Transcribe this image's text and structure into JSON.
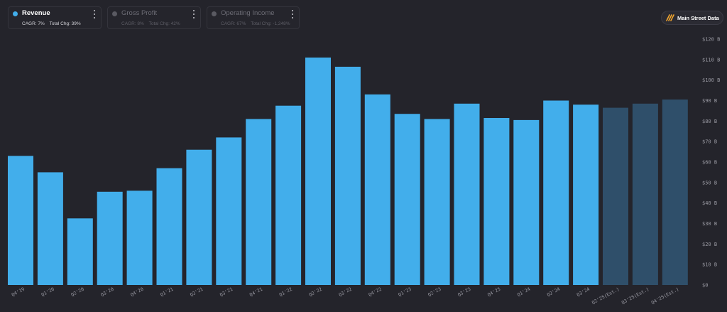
{
  "legend": [
    {
      "title": "Revenue",
      "cagr": "CAGR: 7%",
      "total": "Total Chg: 39%",
      "color": "#42aeeb",
      "active": true
    },
    {
      "title": "Gross Profit",
      "cagr": "CAGR: 8%",
      "total": "Total Chg: 42%",
      "color": "#5a5a62",
      "active": false
    },
    {
      "title": "Operating Income",
      "cagr": "CAGR: 67%",
      "total": "Total Chg: -1,248%",
      "color": "#5a5a62",
      "active": false
    }
  ],
  "brand": {
    "name": "Main Street Data",
    "icon": "double-slash-logo-icon",
    "accent": "#f2a52d"
  },
  "colors": {
    "actual": "#42aeeb",
    "estimate": "#2f4f6a",
    "background": "#24242b"
  },
  "chart_data": {
    "type": "bar",
    "categories": [
      "Q4'19",
      "Q1'20",
      "Q2'20",
      "Q3'20",
      "Q4'20",
      "Q1'21",
      "Q2'21",
      "Q3'21",
      "Q4'21",
      "Q1'22",
      "Q2'22",
      "Q3'22",
      "Q4'22",
      "Q1'23",
      "Q2'23",
      "Q3'23",
      "Q4'23",
      "Q1'24",
      "Q2'24",
      "Q3'24",
      "Q2'25(Est.)",
      "Q3'25(Est.)",
      "Q4'25(Est.)"
    ],
    "series": [
      {
        "name": "Revenue",
        "values": [
          63,
          55,
          32.5,
          45.5,
          46,
          57,
          66,
          72,
          81,
          87.5,
          111,
          106.5,
          93,
          83.5,
          81,
          88.5,
          81.5,
          80.5,
          90,
          88,
          86.5,
          88.5,
          90.5
        ]
      }
    ],
    "estimate_flags": [
      false,
      false,
      false,
      false,
      false,
      false,
      false,
      false,
      false,
      false,
      false,
      false,
      false,
      false,
      false,
      false,
      false,
      false,
      false,
      false,
      true,
      true,
      true
    ],
    "y_ticks": [
      "$0",
      "$10 B",
      "$20 B",
      "$30 B",
      "$40 B",
      "$50 B",
      "$60 B",
      "$70 B",
      "$80 B",
      "$90 B",
      "$100 B",
      "$110 B",
      "$120 B"
    ],
    "ylim": [
      0,
      120
    ],
    "unit": "B",
    "grid": false
  }
}
